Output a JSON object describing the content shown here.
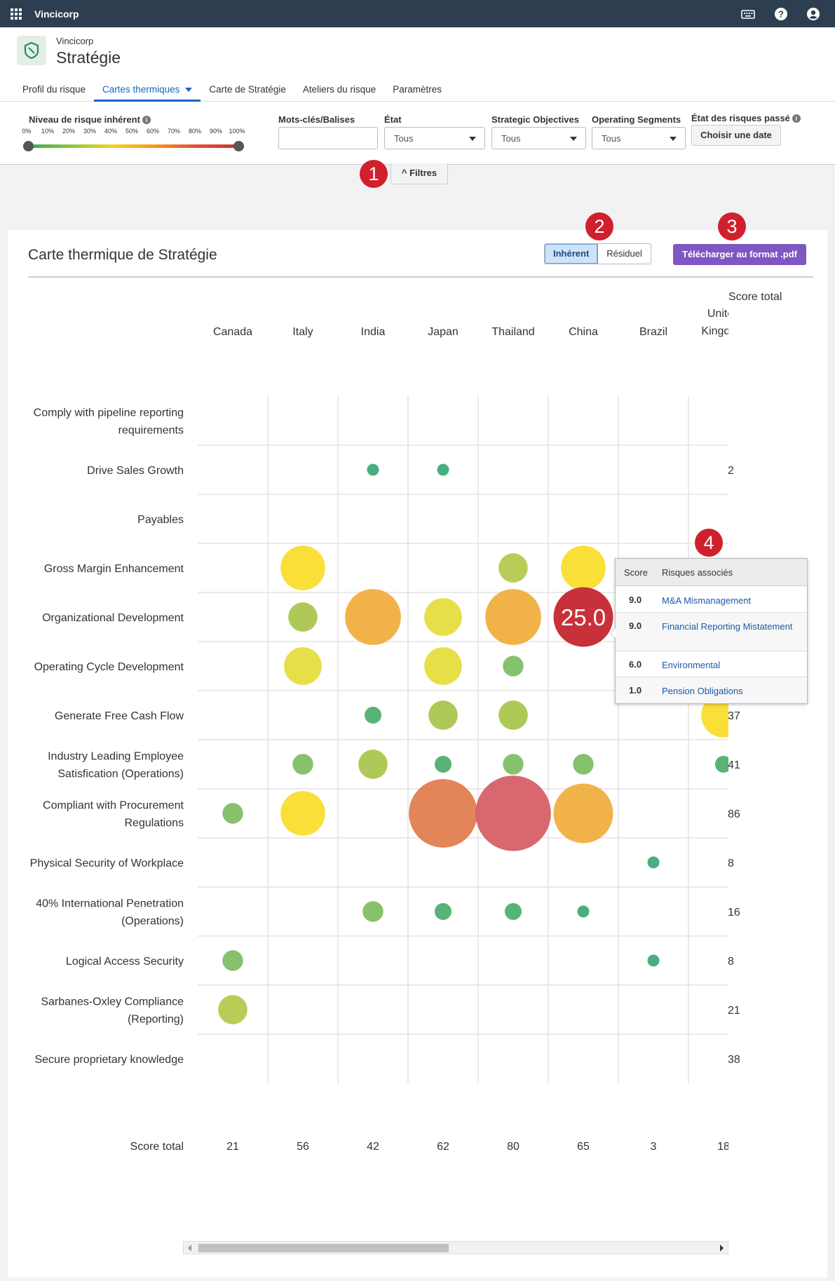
{
  "topbar": {
    "brand": "Vincicorp"
  },
  "header": {
    "org": "Vincicorp",
    "title": "Stratégie",
    "tabs": [
      {
        "label": "Profil du risque"
      },
      {
        "label": "Cartes thermiques"
      },
      {
        "label": "Carte de Stratégie"
      },
      {
        "label": "Ateliers du risque"
      },
      {
        "label": "Paramètres"
      }
    ]
  },
  "filters": {
    "risk_level_label": "Niveau de risque inhérent",
    "risk_level_ticks": [
      "0%",
      "10%",
      "20%",
      "30%",
      "40%",
      "50%",
      "60%",
      "70%",
      "80%",
      "90%",
      "100%"
    ],
    "risk_level_range": [
      0,
      100
    ],
    "keywords_label": "Mots-clés/Balises",
    "keywords_value": "",
    "state_label": "État",
    "state_value": "Tous",
    "objectives_label": "Strategic Objectives",
    "objectives_value": "Tous",
    "segments_label": "Operating Segments",
    "segments_value": "Tous",
    "past_state_label": "État des risques passé",
    "date_button": "Choisir une date",
    "toggle_button": "Filtres"
  },
  "callouts": [
    "1",
    "2",
    "3",
    "4"
  ],
  "card": {
    "title": "Carte thermique de Stratégie",
    "toggle": {
      "inherent": "Inhérent",
      "residual": "Résiduel"
    },
    "pdf_button": "Télécharger au format .pdf"
  },
  "colors": {
    "topbar": "#2d3e50",
    "accent": "#1565c0",
    "pdf": "#7e57c2",
    "callout": "#d0202c",
    "grid": "#e3e3e3"
  },
  "chart_data": {
    "type": "heatmap",
    "columns": [
      "Canada",
      "Italy",
      "India",
      "Japan",
      "Thailand",
      "China",
      "Brazil",
      "United Kingdom"
    ],
    "rows": [
      "Comply with pipeline reporting requirements",
      "Drive Sales Growth",
      "Payables",
      "Gross Margin Enhancement",
      "Organizational Development",
      "Operating Cycle Development",
      "Generate Free Cash Flow",
      "Industry Leading Employee Satisfication (Operations)",
      "Compliant with Procurement Regulations",
      "Physical Security of Workplace",
      "40% International Penetration (Operations)",
      "Logical Access Security",
      "Sarbanes-Oxley Compliance (Reporting)",
      "Secure proprietary knowledge"
    ],
    "total_label": "Score total",
    "row_totals": [
      "",
      "2",
      "",
      "",
      "",
      "",
      "37",
      "41",
      "86",
      "8",
      "16",
      "8",
      "21",
      "38"
    ],
    "column_totals": [
      "21",
      "56",
      "42",
      "62",
      "80",
      "65",
      "3",
      "18"
    ],
    "bubbles": [
      {
        "row": 1,
        "col": 2,
        "value": 1,
        "color": "#3aa876"
      },
      {
        "row": 1,
        "col": 3,
        "value": 1,
        "color": "#3aa876"
      },
      {
        "row": 3,
        "col": 1,
        "value": 14,
        "color": "#f9dc27"
      },
      {
        "row": 3,
        "col": 4,
        "value": 6,
        "color": "#b4c84a"
      },
      {
        "row": 3,
        "col": 5,
        "value": 14,
        "color": "#f9dc27"
      },
      {
        "row": 4,
        "col": 1,
        "value": 6,
        "color": "#a8c44a"
      },
      {
        "row": 4,
        "col": 2,
        "value": 22,
        "color": "#f0ac3a"
      },
      {
        "row": 4,
        "col": 3,
        "value": 10,
        "color": "#e5dc38"
      },
      {
        "row": 4,
        "col": 4,
        "value": 22,
        "color": "#f0ac3a"
      },
      {
        "row": 4,
        "col": 5,
        "value": 25,
        "color": "#c8313a"
      },
      {
        "row": 5,
        "col": 1,
        "value": 10,
        "color": "#e5dc38"
      },
      {
        "row": 5,
        "col": 3,
        "value": 10,
        "color": "#e5dc38"
      },
      {
        "row": 5,
        "col": 4,
        "value": 3,
        "color": "#7cbc60"
      },
      {
        "row": 6,
        "col": 2,
        "value": 2,
        "color": "#4aad6a"
      },
      {
        "row": 6,
        "col": 3,
        "value": 6,
        "color": "#a8c44a"
      },
      {
        "row": 6,
        "col": 4,
        "value": 6,
        "color": "#a8c44a"
      },
      {
        "row": 6,
        "col": 7,
        "value": 14,
        "color": "#f9dc27"
      },
      {
        "row": 7,
        "col": 1,
        "value": 3,
        "color": "#7cbc60"
      },
      {
        "row": 7,
        "col": 2,
        "value": 6,
        "color": "#a8c44a"
      },
      {
        "row": 7,
        "col": 3,
        "value": 2,
        "color": "#4aad6a"
      },
      {
        "row": 7,
        "col": 4,
        "value": 3,
        "color": "#7cbc60"
      },
      {
        "row": 7,
        "col": 5,
        "value": 3,
        "color": "#7cbc60"
      },
      {
        "row": 7,
        "col": 7,
        "value": 2,
        "color": "#4aad6a"
      },
      {
        "row": 8,
        "col": 0,
        "value": 3,
        "color": "#7cbc60"
      },
      {
        "row": 8,
        "col": 1,
        "value": 14,
        "color": "#f9dc27"
      },
      {
        "row": 8,
        "col": 3,
        "value": 33,
        "color": "#e07b4a"
      },
      {
        "row": 8,
        "col": 4,
        "value": 40,
        "color": "#d65a64"
      },
      {
        "row": 8,
        "col": 5,
        "value": 25,
        "color": "#f0ac3a"
      },
      {
        "row": 9,
        "col": 6,
        "value": 1,
        "color": "#3aa876"
      },
      {
        "row": 10,
        "col": 2,
        "value": 3,
        "color": "#7cbc60"
      },
      {
        "row": 10,
        "col": 3,
        "value": 2,
        "color": "#4aad6a"
      },
      {
        "row": 10,
        "col": 4,
        "value": 2,
        "color": "#4aad6a"
      },
      {
        "row": 10,
        "col": 5,
        "value": 1,
        "color": "#3aa876"
      },
      {
        "row": 11,
        "col": 0,
        "value": 3,
        "color": "#7cbc60"
      },
      {
        "row": 11,
        "col": 6,
        "value": 1,
        "color": "#3aa876"
      },
      {
        "row": 12,
        "col": 0,
        "value": 6,
        "color": "#b4c84a"
      }
    ],
    "highlight_label": "25.0"
  },
  "tooltip": {
    "headers": [
      "Score",
      "Risques associés"
    ],
    "rows": [
      {
        "score": "9.0",
        "name": "M&A Mismanagement"
      },
      {
        "score": "9.0",
        "name": "Financial Reporting Mistatement"
      },
      {
        "score": "6.0",
        "name": "Environmental"
      },
      {
        "score": "1.0",
        "name": "Pension Obligations"
      }
    ]
  }
}
